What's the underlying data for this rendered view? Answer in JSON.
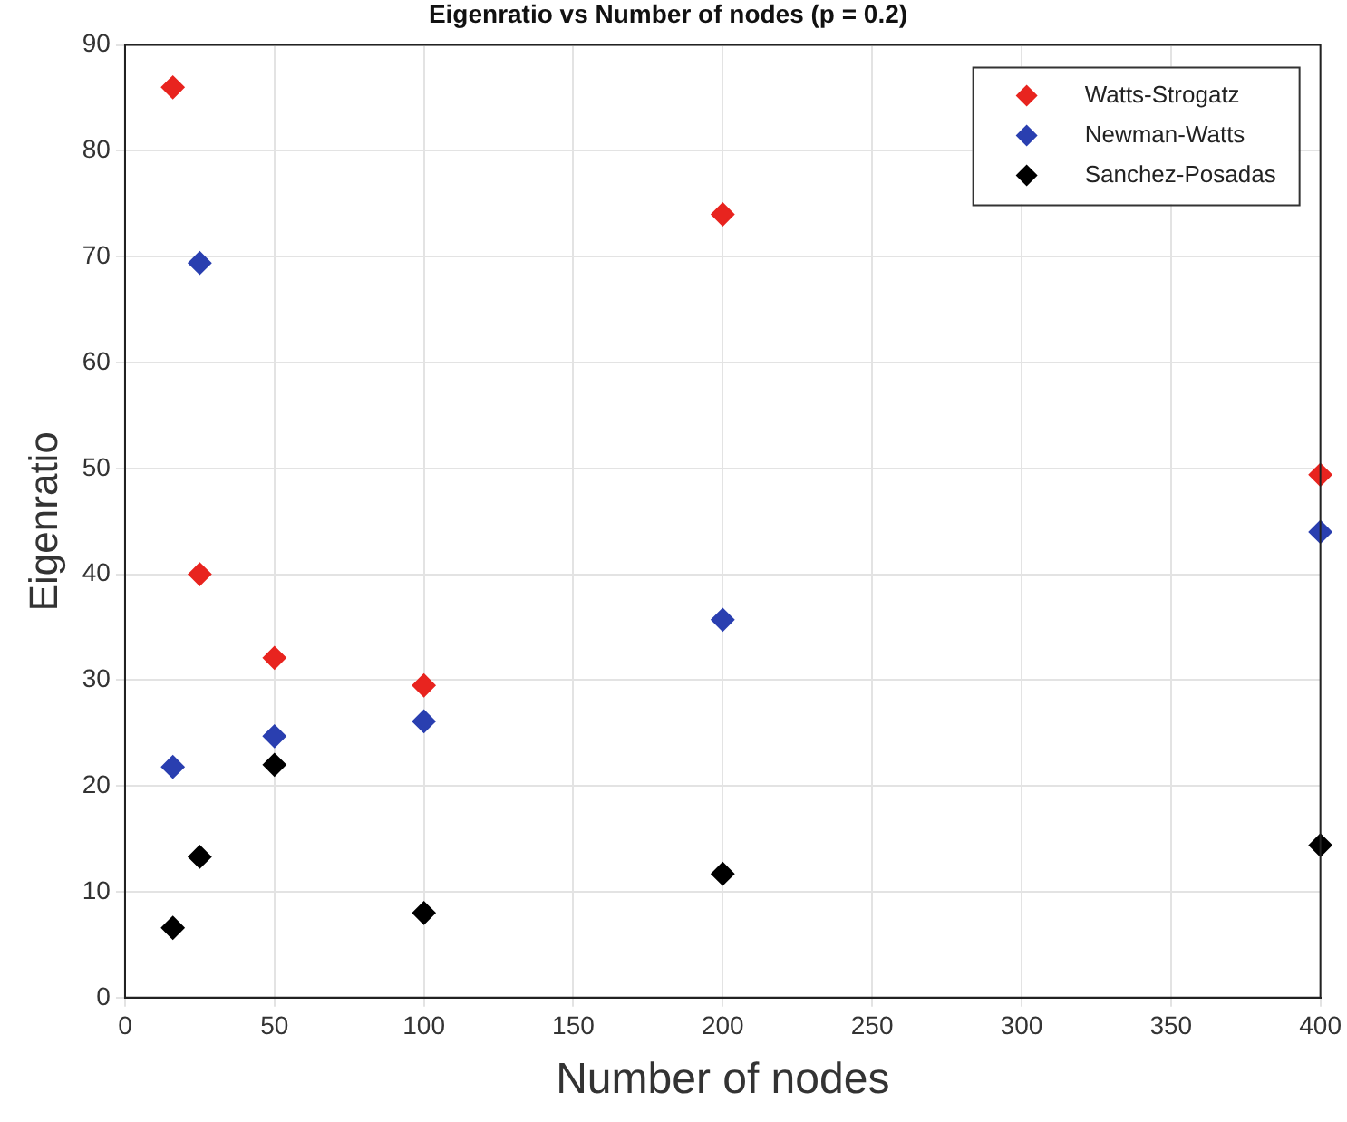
{
  "chart_data": {
    "type": "scatter",
    "title": "Eigenratio vs Number of nodes (p = 0.2)",
    "xlabel": "Number of nodes",
    "ylabel": "Eigenratio",
    "xlim": [
      0,
      400
    ],
    "xticks": [
      0,
      50,
      100,
      150,
      200,
      250,
      300,
      350,
      400
    ],
    "ylim": [
      0,
      90
    ],
    "yticks": [
      0,
      10,
      20,
      30,
      40,
      50,
      60,
      70,
      80,
      90
    ],
    "grid": true,
    "legend": "top right",
    "marker": "diamond",
    "series": [
      {
        "name": "Watts-Strogatz",
        "color": "#e8241f",
        "x": [
          16,
          25,
          50,
          100,
          200,
          400
        ],
        "values": [
          86,
          40,
          32.1,
          29.5,
          74,
          49.4
        ]
      },
      {
        "name": "Newman-Watts",
        "color": "#2a3fb0",
        "x": [
          16,
          25,
          50,
          100,
          200,
          400
        ],
        "values": [
          21.8,
          69.4,
          24.7,
          26.1,
          35.7,
          44
        ]
      },
      {
        "name": "Sanchez-Posadas",
        "color": "#000000",
        "x": [
          16,
          25,
          50,
          100,
          200,
          400
        ],
        "values": [
          6.6,
          13.3,
          22,
          8,
          11.7,
          14.4
        ]
      }
    ]
  }
}
